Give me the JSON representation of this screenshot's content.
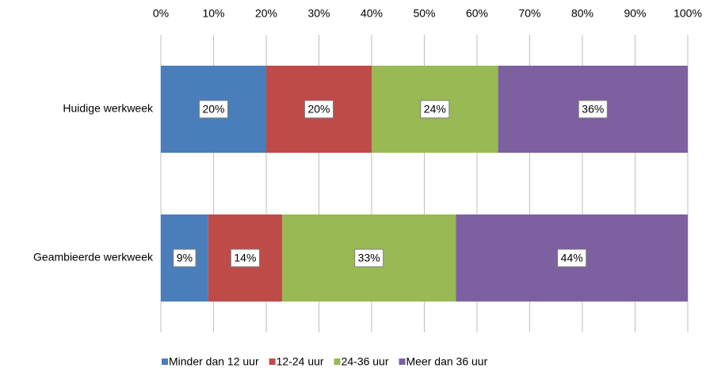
{
  "chart_data": {
    "type": "stacked_barh",
    "categories": [
      "Huidige werkweek",
      "Geambieerde werkweek"
    ],
    "series": [
      {
        "name": "Minder dan 12 uur",
        "color": "#4a7ebb",
        "values": [
          20,
          9
        ],
        "value_labels": [
          "20%",
          "9%"
        ]
      },
      {
        "name": "12-24 uur",
        "color": "#be4b48",
        "values": [
          20,
          14
        ],
        "value_labels": [
          "20%",
          "14%"
        ]
      },
      {
        "name": "24-36 uur",
        "color": "#98b954",
        "values": [
          24,
          33
        ],
        "value_labels": [
          "24%",
          "33%"
        ]
      },
      {
        "name": "Meer dan 36 uur",
        "color": "#7d60a0",
        "values": [
          36,
          44
        ],
        "value_labels": [
          "36%",
          "44%"
        ]
      }
    ],
    "xlim": [
      0,
      100
    ],
    "xticks": [
      {
        "value": 0,
        "label": "0%"
      },
      {
        "value": 10,
        "label": "10%"
      },
      {
        "value": 20,
        "label": "20%"
      },
      {
        "value": 30,
        "label": "30%"
      },
      {
        "value": 40,
        "label": "40%"
      },
      {
        "value": 50,
        "label": "50%"
      },
      {
        "value": 60,
        "label": "60%"
      },
      {
        "value": 70,
        "label": "70%"
      },
      {
        "value": 80,
        "label": "80%"
      },
      {
        "value": 90,
        "label": "90%"
      },
      {
        "value": 100,
        "label": "100%"
      }
    ],
    "grid": true,
    "legend": "bottom"
  }
}
